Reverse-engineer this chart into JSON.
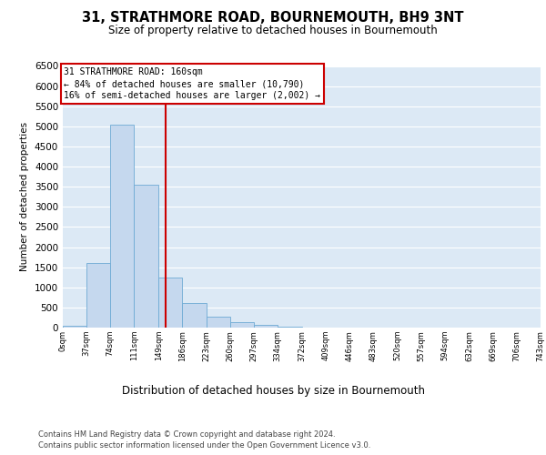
{
  "title": "31, STRATHMORE ROAD, BOURNEMOUTH, BH9 3NT",
  "subtitle": "Size of property relative to detached houses in Bournemouth",
  "xlabel": "Distribution of detached houses by size in Bournemouth",
  "ylabel": "Number of detached properties",
  "bar_edges": [
    0,
    37,
    74,
    111,
    149,
    186,
    223,
    260,
    297,
    334,
    372,
    409,
    446,
    483,
    520,
    557,
    594,
    632,
    669,
    706,
    743
  ],
  "bar_heights": [
    50,
    1600,
    5050,
    3550,
    1250,
    600,
    280,
    130,
    75,
    30,
    10,
    5,
    2,
    0,
    0,
    0,
    0,
    0,
    0,
    0
  ],
  "bar_color": "#c5d8ee",
  "bar_edge_color": "#6daad4",
  "vline_x": 160,
  "vline_color": "#cc0000",
  "annotation_text": "31 STRATHMORE ROAD: 160sqm\n← 84% of detached houses are smaller (10,790)\n16% of semi-detached houses are larger (2,002) →",
  "annotation_box_facecolor": "#ffffff",
  "annotation_box_edgecolor": "#cc0000",
  "ylim": [
    0,
    6500
  ],
  "yticks": [
    0,
    500,
    1000,
    1500,
    2000,
    2500,
    3000,
    3500,
    4000,
    4500,
    5000,
    5500,
    6000,
    6500
  ],
  "xlim": [
    0,
    743
  ],
  "background_color": "#dce9f5",
  "footer_line1": "Contains HM Land Registry data © Crown copyright and database right 2024.",
  "footer_line2": "Contains public sector information licensed under the Open Government Licence v3.0.",
  "tick_labels": [
    "0sqm",
    "37sqm",
    "74sqm",
    "111sqm",
    "149sqm",
    "186sqm",
    "223sqm",
    "260sqm",
    "297sqm",
    "334sqm",
    "372sqm",
    "409sqm",
    "446sqm",
    "483sqm",
    "520sqm",
    "557sqm",
    "594sqm",
    "632sqm",
    "669sqm",
    "706sqm",
    "743sqm"
  ]
}
